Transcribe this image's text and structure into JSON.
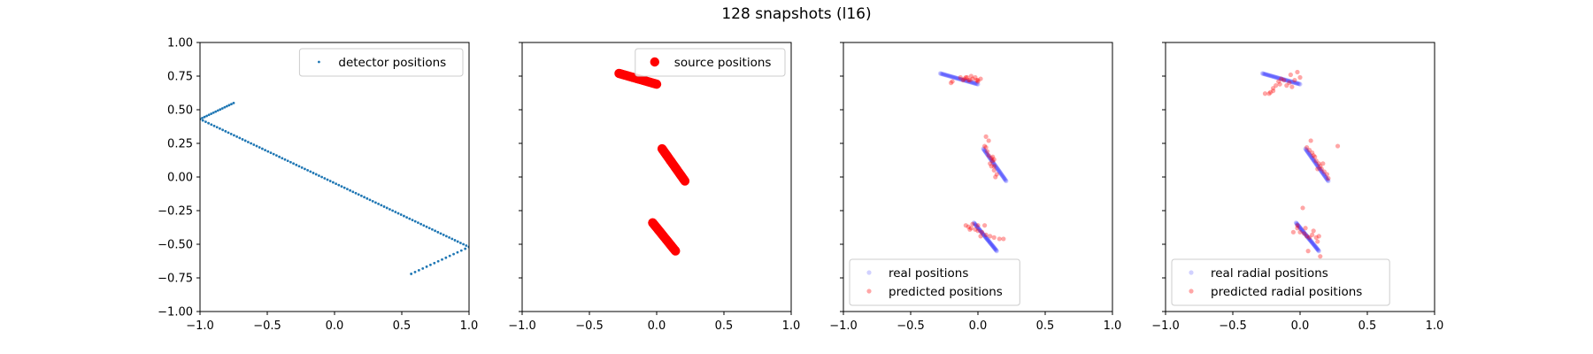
{
  "figure": {
    "title": "128 snapshots (l16)"
  },
  "chart_data": [
    {
      "type": "scatter",
      "title": "",
      "xlabel": "",
      "ylabel": "",
      "xlim": [
        -1.0,
        1.0
      ],
      "ylim": [
        -1.0,
        1.0
      ],
      "xticks": [
        "−1.0",
        "−0.5",
        "0.0",
        "0.5",
        "1.0"
      ],
      "yticks": [
        "−1.00",
        "−0.75",
        "−0.50",
        "−0.25",
        "0.00",
        "0.25",
        "0.50",
        "0.75",
        "1.00"
      ],
      "legend_position": "upper right",
      "series": [
        {
          "name": "detector positions",
          "color": "#1f77b4",
          "marker": "dot-small",
          "segments": [
            {
              "from": [
                -0.75,
                0.55
              ],
              "to": [
                -1.0,
                0.43
              ],
              "n": 16
            },
            {
              "from": [
                -1.0,
                0.43
              ],
              "to": [
                1.0,
                -0.52
              ],
              "n": 96
            },
            {
              "from": [
                1.0,
                -0.52
              ],
              "to": [
                0.57,
                -0.72
              ],
              "n": 16
            }
          ]
        }
      ]
    },
    {
      "type": "scatter",
      "title": "",
      "xlabel": "",
      "ylabel": "",
      "xlim": [
        -1.0,
        1.0
      ],
      "ylim": [
        -1.0,
        1.0
      ],
      "xticks": [
        "−1.0",
        "−0.5",
        "0.0",
        "0.5",
        "1.0"
      ],
      "legend_position": "upper right",
      "series": [
        {
          "name": "source positions",
          "color": "#ff0000",
          "marker": "dot-large",
          "segments": [
            {
              "from": [
                -0.28,
                0.77
              ],
              "to": [
                0.0,
                0.69
              ],
              "n": 42
            },
            {
              "from": [
                0.04,
                0.21
              ],
              "to": [
                0.21,
                -0.03
              ],
              "n": 42
            },
            {
              "from": [
                -0.03,
                -0.34
              ],
              "to": [
                0.14,
                -0.55
              ],
              "n": 44
            }
          ]
        }
      ]
    },
    {
      "type": "scatter",
      "title": "",
      "xlabel": "",
      "ylabel": "",
      "xlim": [
        -1.0,
        1.0
      ],
      "ylim": [
        -1.0,
        1.0
      ],
      "xticks": [
        "−1.0",
        "−0.5",
        "0.0",
        "0.5",
        "1.0"
      ],
      "legend_position": "lower left",
      "series": [
        {
          "name": "real positions",
          "color": "#0000ff",
          "alpha": 0.18,
          "segments": [
            {
              "from": [
                -0.28,
                0.77
              ],
              "to": [
                0.0,
                0.69
              ],
              "n": 42
            },
            {
              "from": [
                0.04,
                0.21
              ],
              "to": [
                0.21,
                -0.03
              ],
              "n": 42
            },
            {
              "from": [
                -0.03,
                -0.34
              ],
              "to": [
                0.14,
                -0.55
              ],
              "n": 44
            }
          ]
        },
        {
          "name": "predicted positions",
          "color": "#ff0000",
          "alpha": 0.35,
          "points": [
            [
              -0.13,
              0.74
            ],
            [
              -0.1,
              0.73
            ],
            [
              -0.08,
              0.74
            ],
            [
              -0.06,
              0.72
            ],
            [
              -0.04,
              0.73
            ],
            [
              -0.02,
              0.74
            ],
            [
              0.0,
              0.72
            ],
            [
              0.02,
              0.73
            ],
            [
              -0.11,
              0.72
            ],
            [
              -0.07,
              0.72
            ],
            [
              -0.05,
              0.75
            ],
            [
              -0.01,
              0.72
            ],
            [
              -0.2,
              0.7
            ],
            [
              -0.19,
              0.71
            ],
            [
              0.0,
              0.71
            ],
            [
              -0.09,
              0.74
            ],
            [
              0.06,
              0.22
            ],
            [
              0.07,
              0.19
            ],
            [
              0.08,
              0.16
            ],
            [
              0.1,
              0.14
            ],
            [
              0.11,
              0.12
            ],
            [
              0.12,
              0.08
            ],
            [
              0.12,
              0.05
            ],
            [
              0.14,
              0.02
            ],
            [
              0.09,
              0.1
            ],
            [
              0.08,
              0.27
            ],
            [
              0.05,
              0.23
            ],
            [
              0.06,
              0.3
            ],
            [
              0.11,
              0.15
            ],
            [
              0.1,
              0.08
            ],
            [
              0.13,
              0.0
            ],
            [
              0.12,
              0.13
            ],
            [
              -0.09,
              -0.36
            ],
            [
              -0.07,
              -0.37
            ],
            [
              -0.05,
              -0.38
            ],
            [
              -0.02,
              -0.39
            ],
            [
              0.0,
              -0.4
            ],
            [
              0.03,
              -0.41
            ],
            [
              0.06,
              -0.43
            ],
            [
              0.09,
              -0.44
            ],
            [
              0.12,
              -0.45
            ],
            [
              0.16,
              -0.46
            ],
            [
              0.19,
              -0.46
            ],
            [
              -0.04,
              -0.35
            ],
            [
              0.05,
              -0.36
            ],
            [
              0.0,
              -0.36
            ],
            [
              -0.06,
              -0.39
            ],
            [
              0.02,
              -0.44
            ]
          ]
        }
      ]
    },
    {
      "type": "scatter",
      "title": "",
      "xlabel": "",
      "ylabel": "",
      "xlim": [
        -1.0,
        1.0
      ],
      "ylim": [
        -1.0,
        1.0
      ],
      "xticks": [
        "−1.0",
        "−0.5",
        "0.0",
        "0.5",
        "1.0"
      ],
      "legend_position": "lower left",
      "series": [
        {
          "name": "real radial positions",
          "color": "#0000ff",
          "alpha": 0.18,
          "segments": [
            {
              "from": [
                -0.28,
                0.77
              ],
              "to": [
                0.0,
                0.69
              ],
              "n": 42
            },
            {
              "from": [
                0.04,
                0.21
              ],
              "to": [
                0.21,
                -0.03
              ],
              "n": 42
            },
            {
              "from": [
                -0.03,
                -0.34
              ],
              "to": [
                0.14,
                -0.55
              ],
              "n": 44
            }
          ]
        },
        {
          "name": "predicted radial positions",
          "color": "#ff0000",
          "alpha": 0.35,
          "points": [
            [
              -0.26,
              0.62
            ],
            [
              -0.22,
              0.63
            ],
            [
              -0.2,
              0.66
            ],
            [
              -0.18,
              0.68
            ],
            [
              -0.16,
              0.71
            ],
            [
              -0.14,
              0.73
            ],
            [
              -0.12,
              0.72
            ],
            [
              -0.1,
              0.68
            ],
            [
              -0.08,
              0.7
            ],
            [
              -0.06,
              0.67
            ],
            [
              -0.04,
              0.72
            ],
            [
              -0.02,
              0.78
            ],
            [
              0.0,
              0.74
            ],
            [
              -0.23,
              0.62
            ],
            [
              -0.2,
              0.64
            ],
            [
              -0.15,
              0.69
            ],
            [
              -0.07,
              0.76
            ],
            [
              0.07,
              0.2
            ],
            [
              0.09,
              0.18
            ],
            [
              0.11,
              0.15
            ],
            [
              0.12,
              0.12
            ],
            [
              0.14,
              0.1
            ],
            [
              0.15,
              0.08
            ],
            [
              0.16,
              0.06
            ],
            [
              0.18,
              0.04
            ],
            [
              0.2,
              0.02
            ],
            [
              0.08,
              0.27
            ],
            [
              0.05,
              0.22
            ],
            [
              0.1,
              0.16
            ],
            [
              0.28,
              0.23
            ],
            [
              0.13,
              0.06
            ],
            [
              0.21,
              -0.01
            ],
            [
              0.17,
              0.1
            ],
            [
              -0.05,
              -0.41
            ],
            [
              -0.02,
              -0.38
            ],
            [
              0.0,
              -0.41
            ],
            [
              0.03,
              -0.42
            ],
            [
              0.05,
              -0.44
            ],
            [
              0.07,
              -0.45
            ],
            [
              0.09,
              -0.43
            ],
            [
              0.12,
              -0.45
            ],
            [
              0.14,
              -0.44
            ],
            [
              0.13,
              -0.48
            ],
            [
              0.02,
              -0.23
            ],
            [
              0.06,
              -0.55
            ],
            [
              0.15,
              -0.59
            ],
            [
              -0.02,
              -0.36
            ],
            [
              0.04,
              -0.38
            ],
            [
              0.1,
              -0.4
            ]
          ]
        }
      ]
    }
  ]
}
